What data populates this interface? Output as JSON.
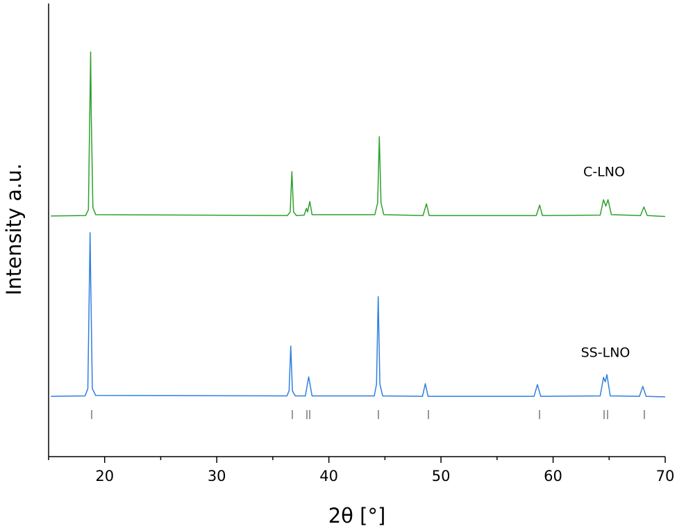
{
  "chart_data": {
    "type": "line",
    "x_label": "2θ [°]",
    "y_label": "Intensity a.u.",
    "xlim": [
      15,
      70
    ],
    "ylim": [
      0,
      100
    ],
    "xticks": [
      20,
      30,
      40,
      50,
      60,
      70
    ],
    "xminorticks": [
      15,
      25,
      35,
      45,
      55,
      65
    ],
    "series": [
      {
        "name": "C-LNO",
        "color": "#2ca02c",
        "x": [
          15.2,
          18.3,
          18.55,
          18.75,
          18.8,
          18.95,
          19.2,
          36.3,
          36.55,
          36.7,
          36.85,
          37.1,
          37.8,
          38.0,
          38.1,
          38.3,
          38.5,
          44.1,
          44.35,
          44.5,
          44.65,
          44.9,
          48.4,
          48.7,
          48.95,
          58.5,
          58.8,
          59.05,
          64.2,
          64.5,
          64.7,
          64.9,
          65.2,
          67.8,
          68.1,
          68.4,
          70.0
        ],
        "values": [
          53.1,
          53.2,
          54.5,
          89.3,
          76,
          55,
          53.4,
          53.2,
          54,
          62.9,
          54,
          53.2,
          53.3,
          54.8,
          54,
          56.3,
          53.4,
          53.4,
          56,
          70.6,
          56,
          53.4,
          53.2,
          55.8,
          53.2,
          53.2,
          55.5,
          53.2,
          53.3,
          56.7,
          55.3,
          56.7,
          53.4,
          53.2,
          55.1,
          53.2,
          53.0
        ]
      },
      {
        "name": "SS-LNO",
        "color": "#2f7ee0",
        "x": [
          15.2,
          18.25,
          18.5,
          18.7,
          18.75,
          18.9,
          19.2,
          36.25,
          36.45,
          36.6,
          36.75,
          37.0,
          37.9,
          38.2,
          38.5,
          44.05,
          44.25,
          44.4,
          44.55,
          44.8,
          48.35,
          48.6,
          48.85,
          58.3,
          58.6,
          58.9,
          64.2,
          64.5,
          64.65,
          64.8,
          65.1,
          67.7,
          68.0,
          68.3,
          70.0
        ],
        "values": [
          13.3,
          13.4,
          15,
          49.4,
          40,
          15,
          13.5,
          13.4,
          14.5,
          24.4,
          14.5,
          13.4,
          13.4,
          17.6,
          13.4,
          13.4,
          16,
          35.3,
          16,
          13.4,
          13.3,
          16.1,
          13.3,
          13.3,
          15.9,
          13.3,
          13.4,
          17.5,
          16.5,
          18.1,
          13.4,
          13.3,
          15.5,
          13.3,
          13.2
        ]
      }
    ],
    "reference_peaks": [
      18.84,
      36.74,
      38.04,
      38.29,
      44.42,
      48.88,
      58.79,
      64.55,
      64.86,
      68.14
    ]
  }
}
